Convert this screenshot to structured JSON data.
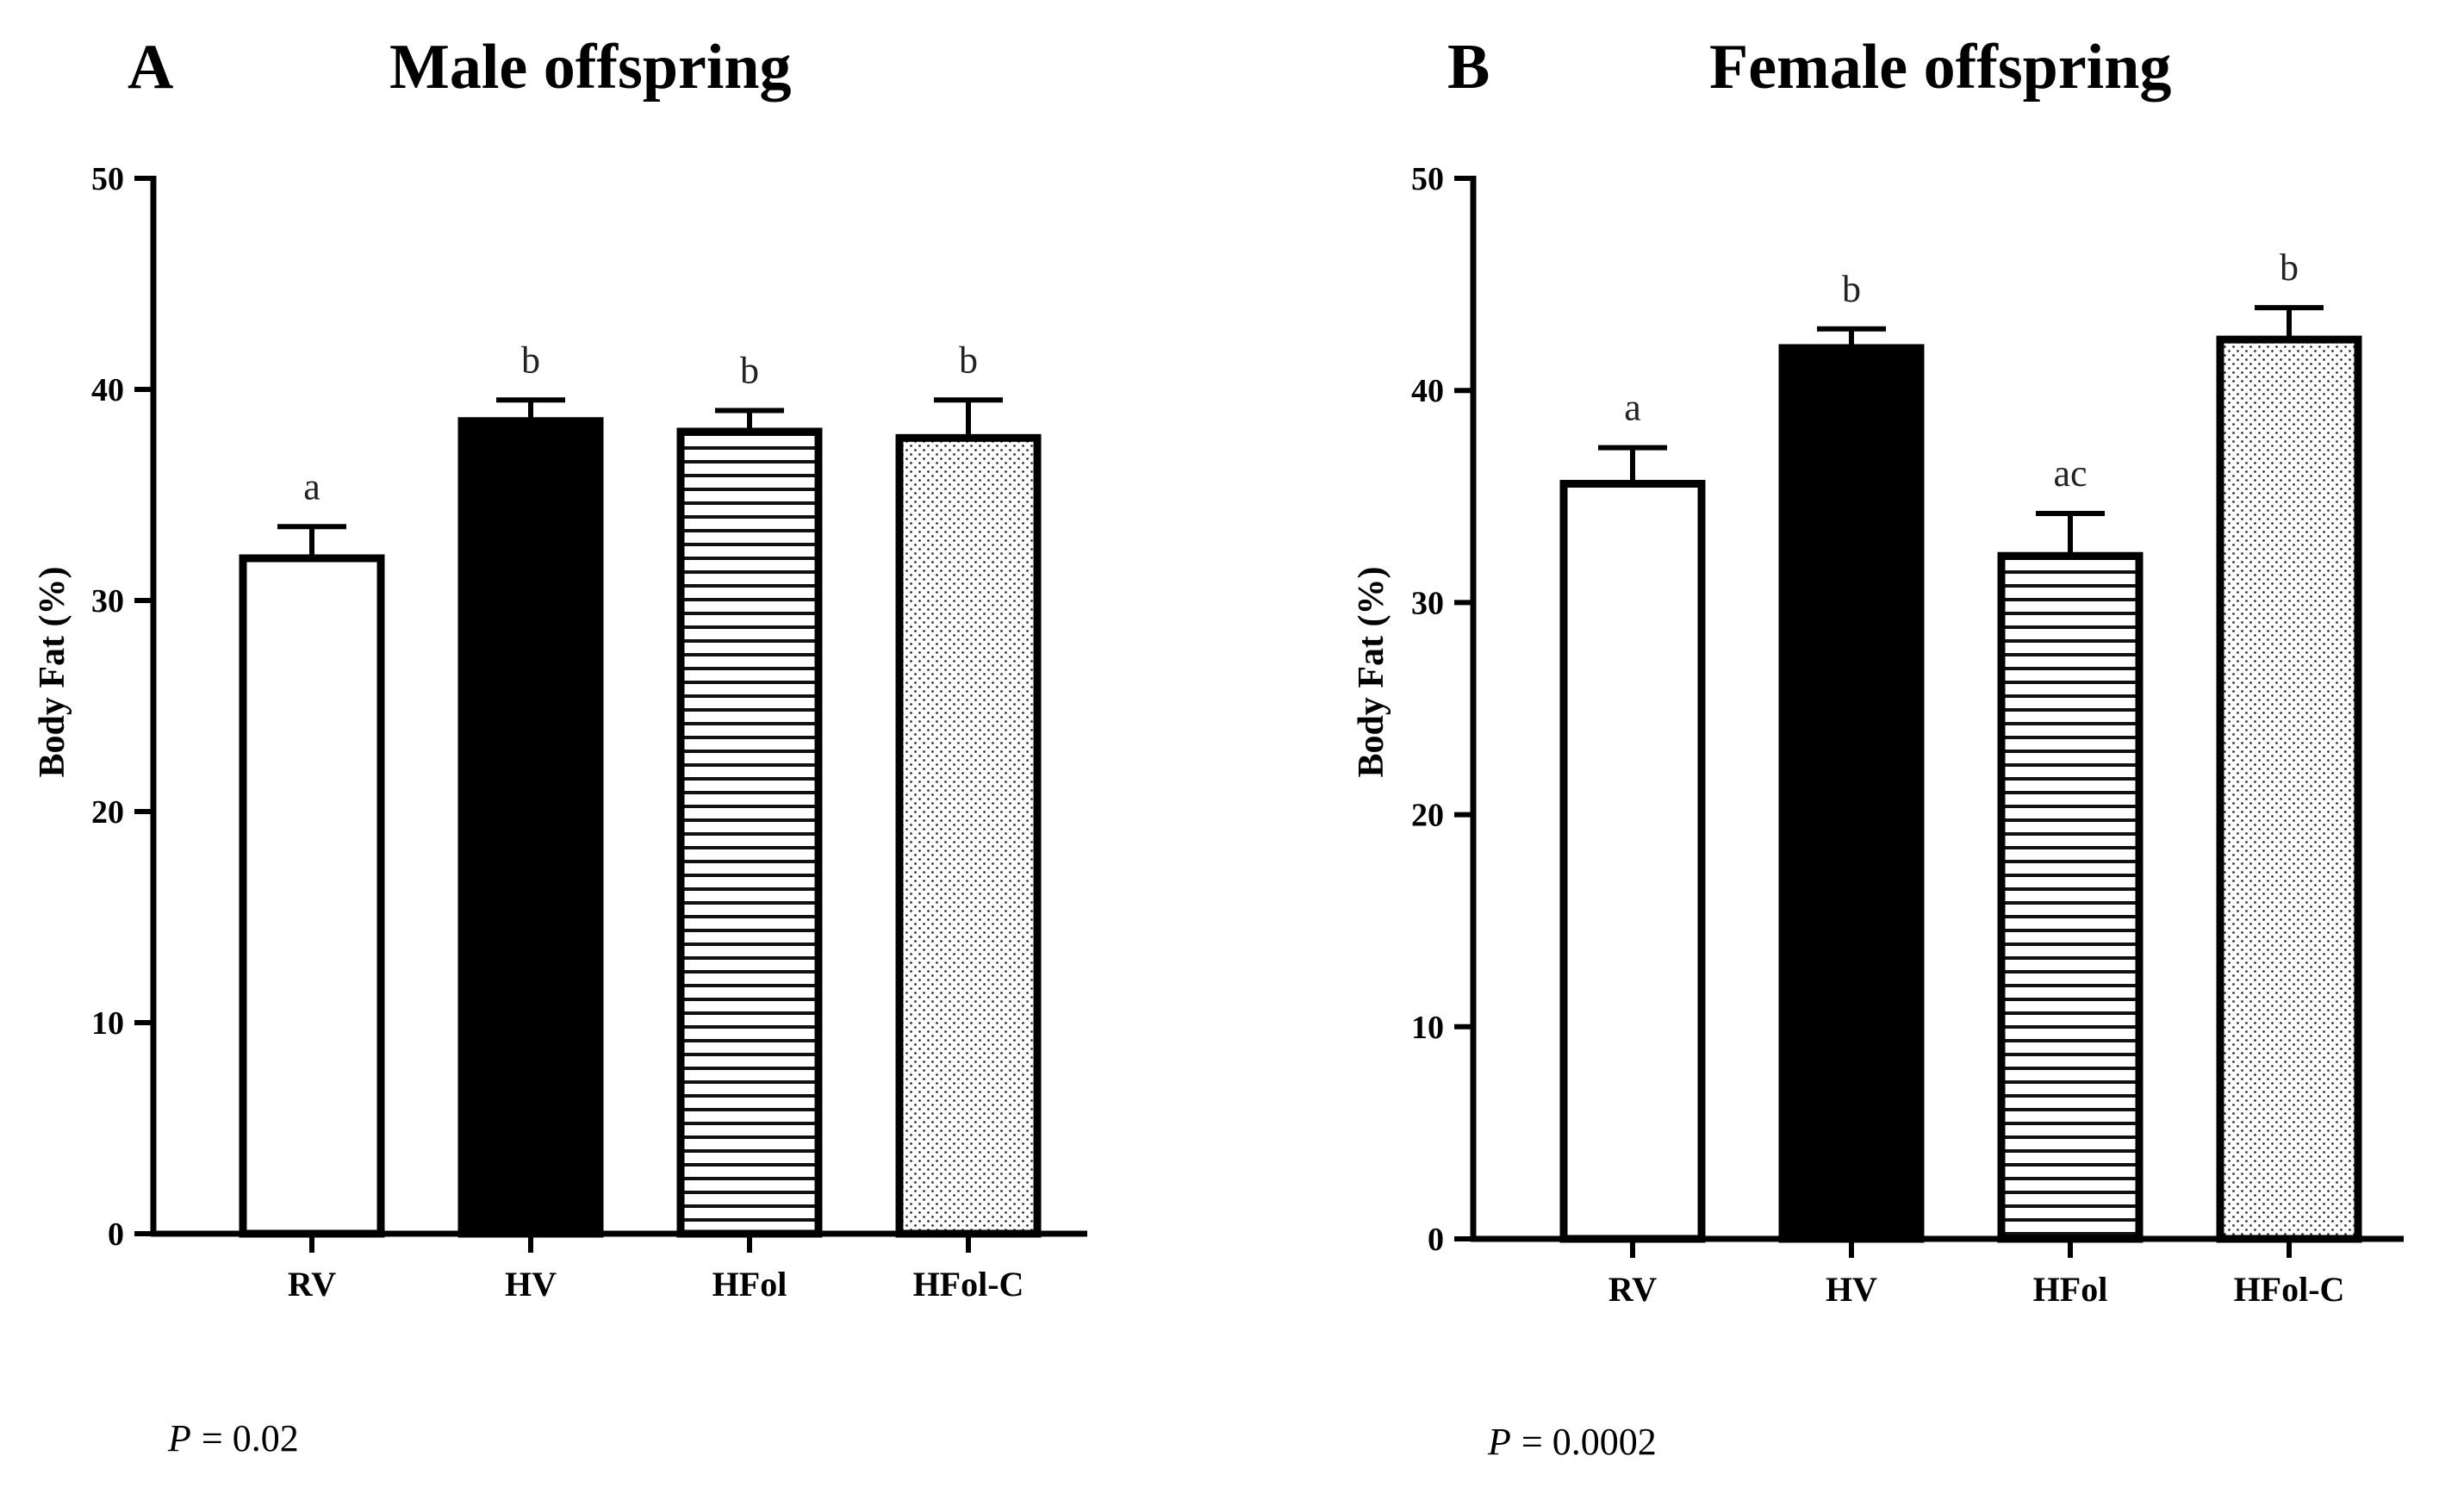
{
  "chart_data": [
    {
      "type": "bar",
      "panel": "A",
      "title": "Male offspring",
      "ylabel": "Body Fat (%)",
      "xlabel": "",
      "ylim": [
        0,
        50
      ],
      "yticks": [
        0,
        10,
        20,
        30,
        40,
        50
      ],
      "categories": [
        "RV",
        "HV",
        "HFol",
        "HFol-C"
      ],
      "values": [
        32.0,
        38.5,
        38.0,
        37.7
      ],
      "errors": [
        1.5,
        1.0,
        1.0,
        1.8
      ],
      "significance": [
        "a",
        "b",
        "b",
        "b"
      ],
      "fills": [
        "white",
        "black",
        "horizontal-lines",
        "dots"
      ],
      "p_prefix": "P",
      "p_value": "= 0.02"
    },
    {
      "type": "bar",
      "panel": "B",
      "title": "Female offspring",
      "ylabel": "Body Fat (%)",
      "xlabel": "",
      "ylim": [
        0,
        50
      ],
      "yticks": [
        0,
        10,
        20,
        30,
        40,
        50
      ],
      "categories": [
        "RV",
        "HV",
        "HFol",
        "HFol-C"
      ],
      "values": [
        35.6,
        42.0,
        32.2,
        42.4
      ],
      "errors": [
        1.7,
        0.9,
        2.0,
        1.5
      ],
      "significance": [
        "a",
        "b",
        "ac",
        "b"
      ],
      "fills": [
        "white",
        "black",
        "horizontal-lines",
        "dots"
      ],
      "p_prefix": "P",
      "p_value": "= 0.0002"
    }
  ]
}
